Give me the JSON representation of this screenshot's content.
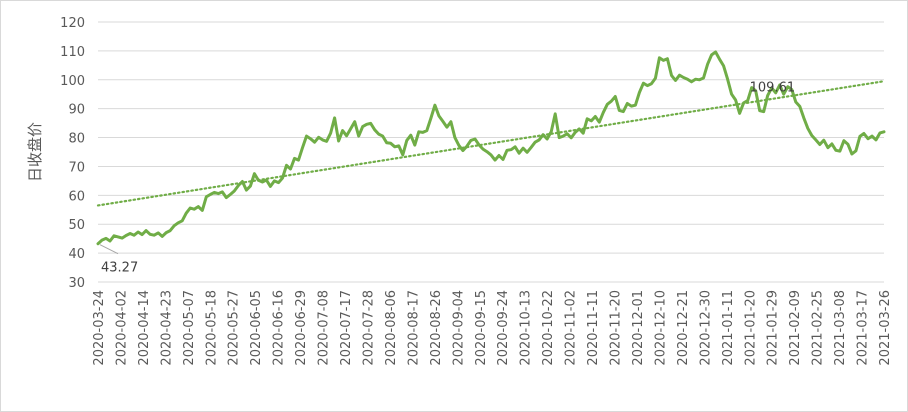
{
  "chart_data": {
    "type": "line",
    "title": "",
    "xlabel": "",
    "ylabel": "日收盘价",
    "ylim": [
      30,
      120
    ],
    "yticks": [
      30,
      40,
      50,
      60,
      70,
      80,
      90,
      100,
      110,
      120
    ],
    "x_tick_labels": [
      "2020-03-24",
      "2020-04-02",
      "2020-04-14",
      "2020-04-23",
      "2020-05-07",
      "2020-05-18",
      "2020-05-27",
      "2020-06-05",
      "2020-06-16",
      "2020-06-29",
      "2020-07-08",
      "2020-07-17",
      "2020-07-28",
      "2020-08-06",
      "2020-08-17",
      "2020-08-26",
      "2020-09-04",
      "2020-09-15",
      "2020-09-24",
      "2020-10-13",
      "2020-10-22",
      "2020-11-02",
      "2020-11-11",
      "2020-11-20",
      "2020-12-01",
      "2020-12-10",
      "2020-12-21",
      "2020-12-30",
      "2021-01-11",
      "2021-01-20",
      "2021-01-29",
      "2021-02-09",
      "2021-02-25",
      "2021-03-08",
      "2021-03-17",
      "2021-03-26"
    ],
    "grid": "horizontal",
    "series": [
      {
        "color": "#70ad47",
        "values": [
          43.27,
          44.5,
          45.1,
          44.2,
          46.0,
          45.6,
          45.2,
          46.1,
          46.8,
          46.2,
          47.3,
          46.4,
          47.8,
          46.5,
          46.2,
          47.0,
          45.8,
          47.1,
          47.8,
          49.5,
          50.5,
          51.2,
          53.8,
          55.6,
          55.2,
          56.1,
          54.8,
          59.5,
          60.3,
          61.0,
          60.6,
          61.2,
          59.2,
          60.3,
          61.5,
          63.4,
          64.8,
          61.8,
          63.2,
          67.5,
          65.2,
          64.6,
          65.3,
          63.1,
          65.0,
          64.4,
          66.0,
          70.4,
          69.1,
          72.8,
          72.2,
          76.5,
          80.5,
          79.6,
          78.4,
          80.1,
          79.2,
          78.7,
          81.5,
          86.8,
          78.8,
          82.4,
          80.6,
          83.0,
          85.5,
          80.5,
          83.8,
          84.6,
          84.9,
          82.7,
          81.2,
          80.5,
          78.2,
          78.0,
          76.8,
          77.1,
          74.0,
          79.0,
          80.8,
          77.4,
          82.0,
          81.8,
          82.4,
          86.6,
          91.2,
          87.5,
          85.6,
          83.6,
          85.5,
          80.0,
          77.3,
          75.5,
          77.0,
          79.0,
          79.5,
          77.5,
          76.0,
          75.1,
          74.0,
          72.2,
          73.8,
          72.4,
          75.6,
          75.8,
          76.8,
          74.6,
          76.3,
          74.9,
          76.6,
          78.4,
          79.2,
          81.0,
          79.5,
          82.0,
          88.2,
          80.0,
          80.5,
          81.3,
          79.9,
          81.8,
          83.0,
          81.5,
          86.5,
          85.8,
          87.3,
          85.3,
          88.7,
          91.5,
          92.6,
          94.2,
          89.4,
          89.0,
          91.8,
          90.9,
          91.2,
          95.6,
          98.8,
          98.0,
          98.6,
          100.5,
          107.6,
          106.7,
          107.3,
          101.5,
          99.8,
          101.6,
          100.8,
          100.2,
          99.3,
          100.2,
          100.0,
          100.6,
          105.4,
          108.6,
          109.61,
          107.1,
          104.8,
          100.2,
          95.0,
          93.0,
          88.4,
          92.0,
          92.8,
          97.3,
          96.2,
          89.3,
          89.0,
          94.6,
          97.2,
          95.5,
          98.2,
          95.0,
          97.6,
          96.6,
          92.3,
          90.8,
          86.8,
          83.2,
          80.7,
          79.2,
          77.6,
          79.1,
          76.5,
          77.8,
          75.6,
          75.3,
          78.9,
          77.7,
          74.3,
          75.4,
          80.4,
          81.4,
          79.6,
          80.5,
          79.2,
          81.6,
          82.0
        ]
      }
    ],
    "trendline": {
      "style": "dotted",
      "color": "#70ad47",
      "start": 56.5,
      "end": 99.5
    },
    "annotations": [
      {
        "text": "43.27",
        "point_index": 0
      },
      {
        "text": "109.61",
        "point_index": 162
      }
    ]
  }
}
